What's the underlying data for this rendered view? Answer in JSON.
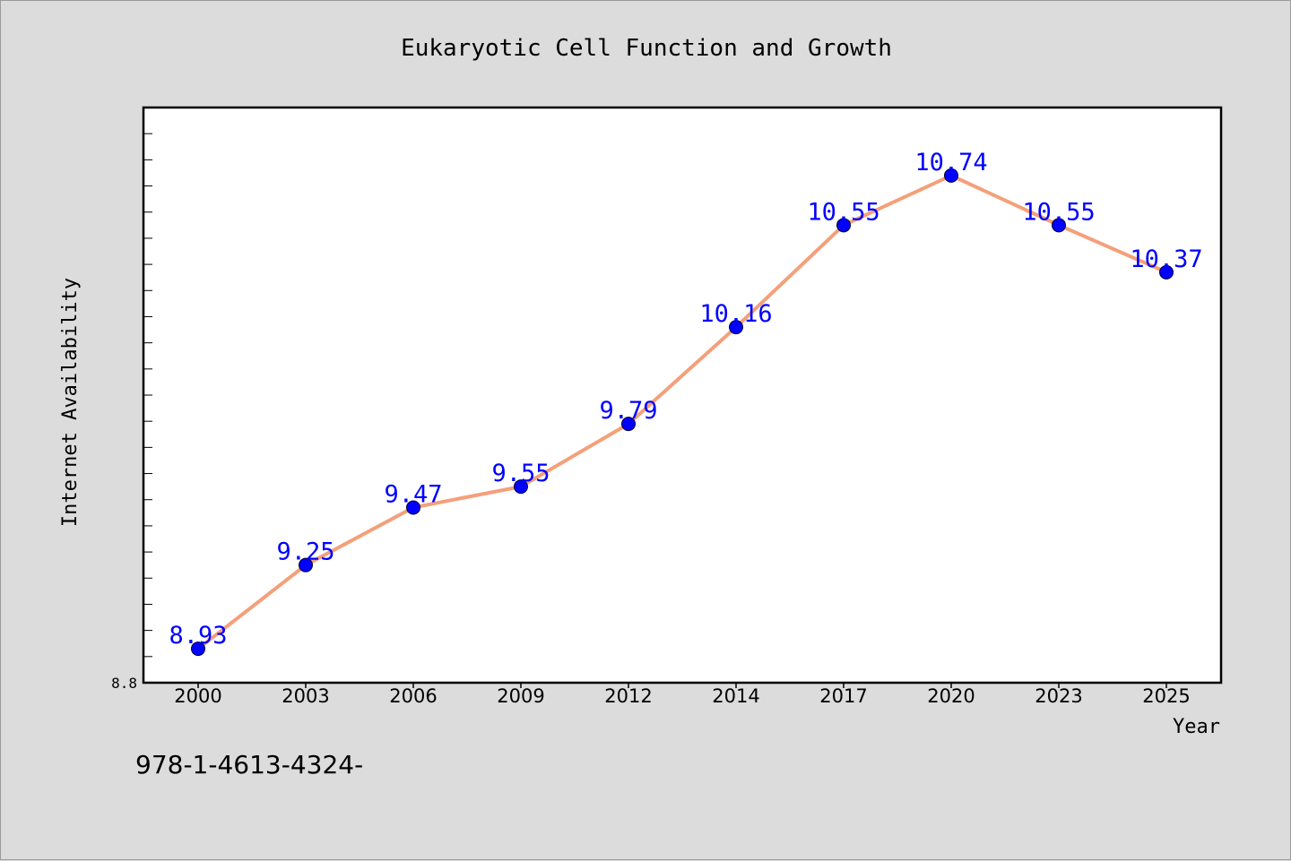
{
  "chart_data": {
    "type": "line",
    "title": "Eukaryotic Cell Function and Growth",
    "xlabel": "Year",
    "ylabel": "Internet Availability",
    "categories": [
      "2000",
      "2003",
      "2006",
      "2009",
      "2012",
      "2014",
      "2017",
      "2020",
      "2023",
      "2025"
    ],
    "values": [
      8.93,
      9.25,
      9.47,
      9.55,
      9.79,
      10.16,
      10.55,
      10.74,
      10.55,
      10.37
    ],
    "data_labels": [
      "8.93",
      "9.25",
      "9.47",
      "9.55",
      "9.79",
      "10.16",
      "10.55",
      "10.74",
      "10.55",
      "10.37"
    ],
    "ylim": [
      8.8,
      11.0
    ],
    "yticks_labeled": [
      "8.8"
    ],
    "grid": false,
    "legend": "none",
    "line_color": "#f4a07a",
    "marker_color": "#0000ff"
  },
  "footer": {
    "isbn": "978-1-4613-4324-"
  }
}
